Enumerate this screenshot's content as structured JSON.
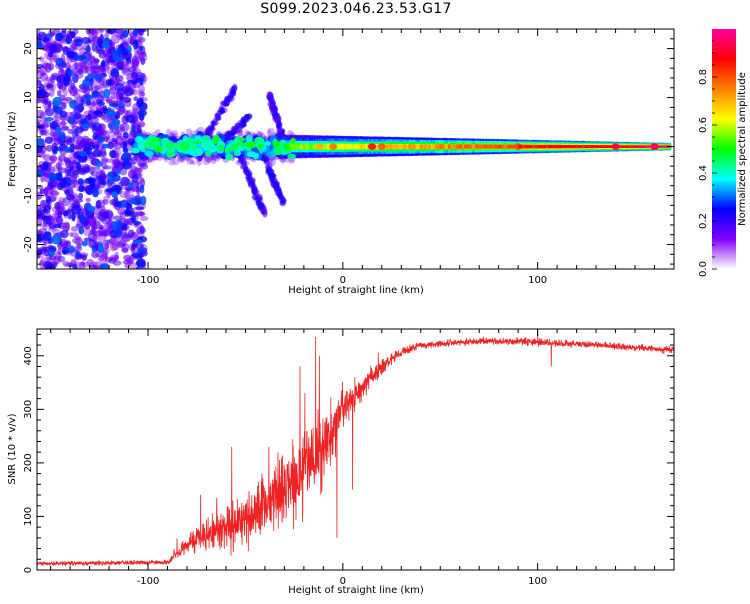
{
  "figure_title": "S099.2023.046.23.53.G17",
  "chart_data": [
    {
      "type": "heatmap",
      "xlabel": "Height of straight line (km)",
      "ylabel": "Frequency (Hz)",
      "xlim": [
        -157,
        170
      ],
      "ylim": [
        -25,
        24
      ],
      "xticks": [
        -100,
        0,
        100
      ],
      "yticks": [
        20,
        10,
        0,
        -10,
        -20
      ],
      "colorbar": {
        "label": "Normalized spectral amplitude",
        "range": [
          0,
          1
        ],
        "ticks": [
          "0.0",
          "0.2",
          "0.4",
          "0.6",
          "0.8"
        ],
        "colors": [
          "#ffffff",
          "#8000ff",
          "#0000ff",
          "#00ffff",
          "#00ff00",
          "#ffff00",
          "#ff8000",
          "#ff0000",
          "#ff00a0"
        ]
      },
      "description_data": {
        "noise_region_x": [
          -157,
          -102
        ],
        "noise_amplitude": [
          0.05,
          0.3
        ],
        "scatter_region_x": [
          -107,
          -25
        ],
        "scatter_amplitude": [
          0.2,
          0.45
        ],
        "streaks": [
          {
            "x": [
              -75,
              -55
            ],
            "y": [
              -1,
              12
            ],
            "amplitude": 0.2
          },
          {
            "x": [
              -68,
              -48
            ],
            "y": [
              -1,
              6
            ],
            "amplitude": 0.2
          },
          {
            "x": [
              -55,
              -40
            ],
            "y": [
              0,
              -14
            ],
            "amplitude": 0.2
          },
          {
            "x": [
              -45,
              -30
            ],
            "y": [
              2,
              -12
            ],
            "amplitude": 0.22
          },
          {
            "x": [
              -38,
              -30
            ],
            "y": [
              11,
              1
            ],
            "amplitude": 0.18
          }
        ],
        "carrier_band": {
          "x": [
            -30,
            168
          ],
          "center_hz": 0,
          "halfwidth_hz": [
            2.5,
            0.8
          ],
          "peak_amplitude": [
            0.5,
            0.95
          ]
        }
      }
    },
    {
      "type": "line",
      "xlabel": "Height of straight line (km)",
      "ylabel": "SNR (10 * v/v)",
      "xlim": [
        -157,
        170
      ],
      "ylim": [
        0,
        450
      ],
      "xticks": [
        -100,
        0,
        100
      ],
      "yticks": [
        0,
        100,
        200,
        300,
        400
      ],
      "color": "#ee2222",
      "series_profile": {
        "x": [
          -157,
          -90,
          -85,
          -80,
          -70,
          -60,
          -50,
          -40,
          -30,
          -20,
          -10,
          0,
          10,
          20,
          30,
          40,
          60,
          80,
          100,
          120,
          140,
          170
        ],
        "y": [
          12,
          14,
          30,
          50,
          65,
          80,
          95,
          120,
          150,
          180,
          230,
          300,
          340,
          380,
          405,
          420,
          425,
          428,
          425,
          422,
          418,
          410
        ],
        "noise": [
          4,
          5,
          12,
          22,
          35,
          45,
          55,
          65,
          85,
          95,
          75,
          45,
          25,
          15,
          10,
          7,
          7,
          8,
          8,
          7,
          7,
          7
        ]
      },
      "spikes": [
        {
          "x": -73,
          "y": 140
        },
        {
          "x": -57,
          "y": 230
        },
        {
          "x": -38,
          "y": 230
        },
        {
          "x": -22,
          "y": 380
        },
        {
          "x": -14,
          "y": 435
        },
        {
          "x": -3,
          "y": 60
        },
        {
          "x": 5,
          "y": 150
        },
        {
          "x": 100,
          "y": 450
        },
        {
          "x": 107,
          "y": 380
        }
      ]
    }
  ]
}
